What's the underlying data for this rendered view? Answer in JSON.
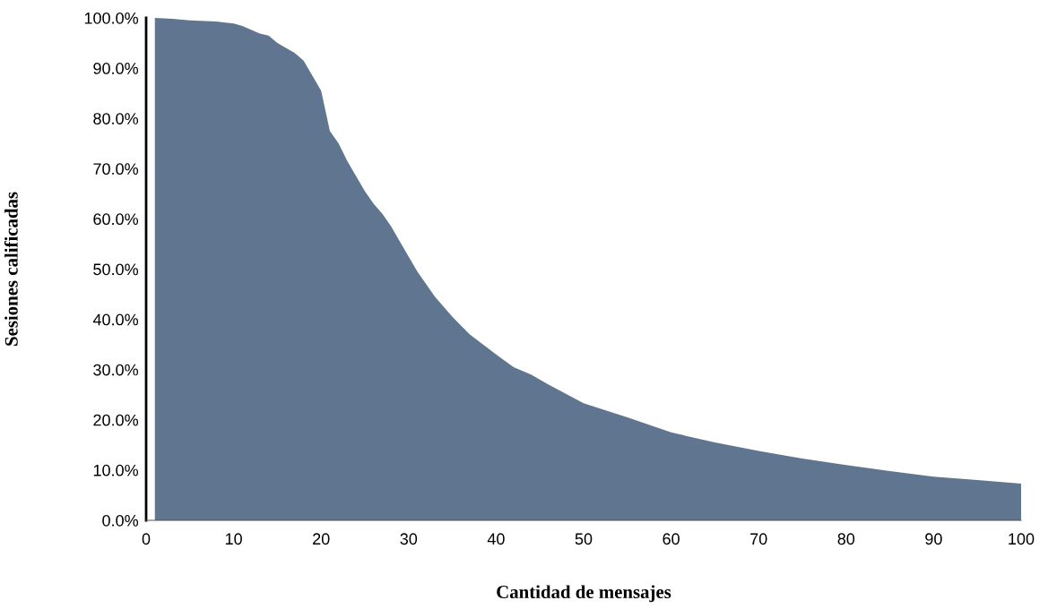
{
  "chart_data": {
    "type": "area",
    "xlabel": "Cantidad de mensajes",
    "ylabel": "Sesiones calificadas",
    "x": [
      1,
      3,
      5,
      8,
      10,
      11,
      13,
      14,
      15,
      17,
      18,
      19,
      20,
      21,
      22,
      23,
      24,
      25,
      26,
      27,
      28,
      29,
      30,
      31,
      32,
      33,
      35,
      37,
      40,
      42,
      44,
      46,
      50,
      55,
      60,
      65,
      70,
      75,
      80,
      85,
      90,
      95,
      100
    ],
    "series": [
      {
        "color": "#5f7590",
        "values": [
          100,
          99.8,
          99.5,
          99.3,
          98.9,
          98.4,
          96.9,
          96.5,
          95.0,
          93.0,
          91.5,
          88.5,
          85.5,
          77.5,
          75.0,
          71.5,
          68.5,
          65.5,
          63,
          61,
          58.5,
          55.5,
          52.5,
          49.5,
          47,
          44.5,
          40.5,
          37,
          33,
          30.5,
          29,
          27,
          23.3,
          20.5,
          17.5,
          15.5,
          13.8,
          12.3,
          11,
          9.8,
          8.7,
          8.0,
          7.3
        ]
      }
    ],
    "xlim": [
      0,
      100
    ],
    "xticks": [
      0,
      10,
      20,
      30,
      40,
      50,
      60,
      70,
      80,
      90,
      100
    ],
    "ylim": [
      0,
      100
    ],
    "yticks": [
      {
        "value": 0,
        "label": "0.0%"
      },
      {
        "value": 10,
        "label": "10.0%"
      },
      {
        "value": 20,
        "label": "20.0%"
      },
      {
        "value": 30,
        "label": "30.0%"
      },
      {
        "value": 40,
        "label": "40.0%"
      },
      {
        "value": 50,
        "label": "50.0%"
      },
      {
        "value": 60,
        "label": "60.0%"
      },
      {
        "value": 70,
        "label": "70.0%"
      },
      {
        "value": 80,
        "label": "80.0%"
      },
      {
        "value": 90,
        "label": "90.0%"
      },
      {
        "value": 100,
        "label": "100.0%"
      }
    ],
    "grid": false,
    "legend": false
  }
}
